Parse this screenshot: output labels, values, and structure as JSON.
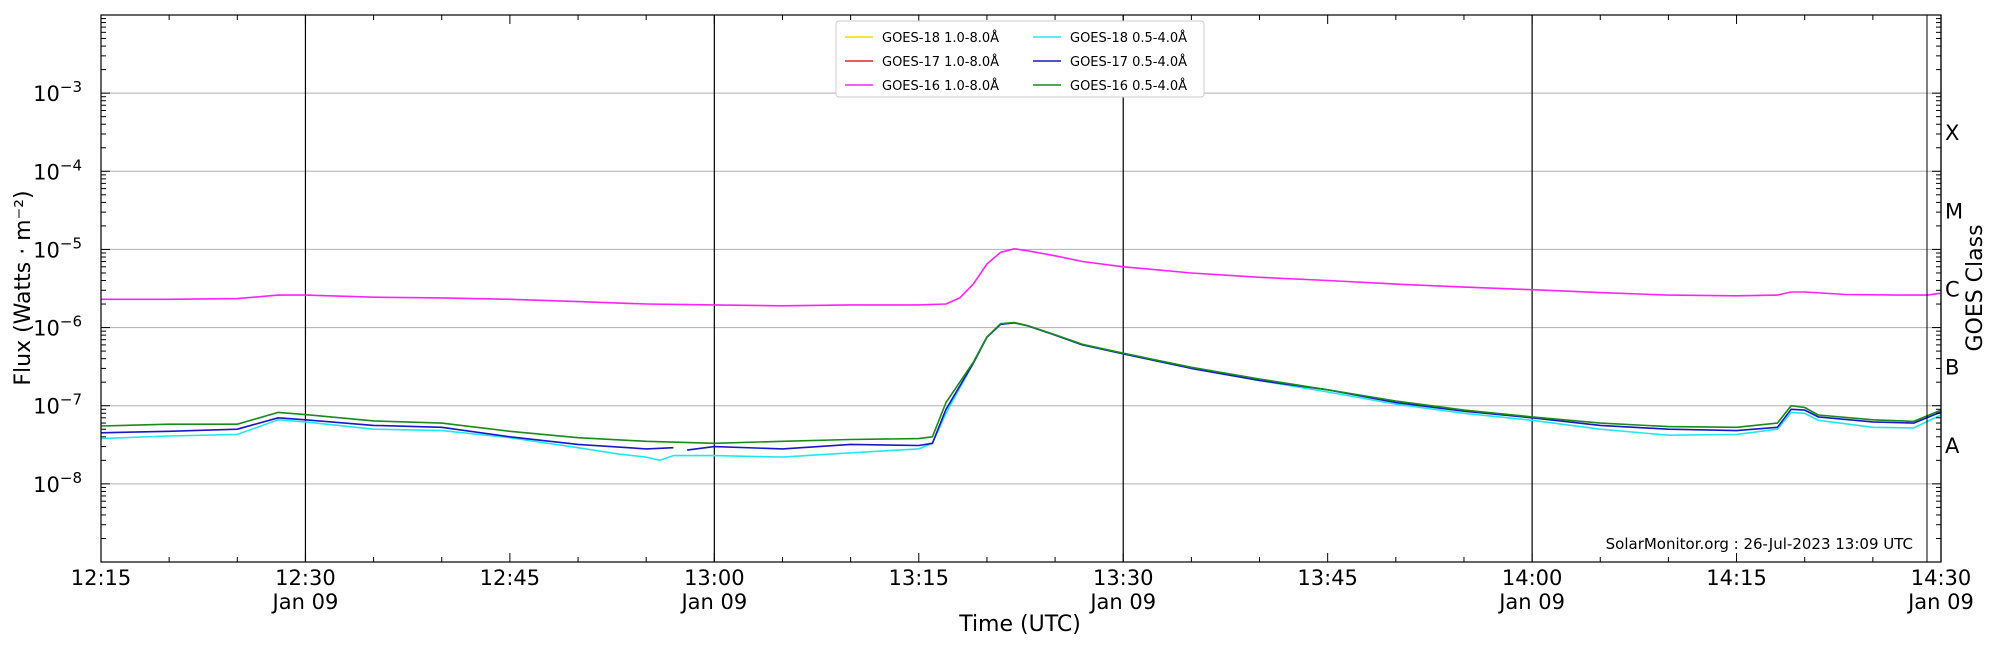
{
  "chart_data": {
    "type": "line",
    "xlabel": "Time (UTC)",
    "ylabel": "Flux (Watts · m⁻²)",
    "y2label": "GOES Class",
    "yscale": "log",
    "xlim": [
      "2023-01-09 12:15",
      "2023-01-09 14:30"
    ],
    "ylim": [
      1e-09,
      0.01
    ],
    "grid": "horizontal at each decade; vertical black lines every 30 min",
    "legend_position": "top-center",
    "x_ticks": [
      {
        "time": "12:15",
        "label": "12:15",
        "sublabel": ""
      },
      {
        "time": "12:30",
        "label": "12:30",
        "sublabel": "Jan 09"
      },
      {
        "time": "12:45",
        "label": "12:45",
        "sublabel": ""
      },
      {
        "time": "13:00",
        "label": "13:00",
        "sublabel": "Jan 09"
      },
      {
        "time": "13:15",
        "label": "13:15",
        "sublabel": ""
      },
      {
        "time": "13:30",
        "label": "13:30",
        "sublabel": "Jan 09"
      },
      {
        "time": "13:45",
        "label": "13:45",
        "sublabel": ""
      },
      {
        "time": "14:00",
        "label": "14:00",
        "sublabel": "Jan 09"
      },
      {
        "time": "14:15",
        "label": "14:15",
        "sublabel": ""
      },
      {
        "time": "14:30",
        "label": "14:30",
        "sublabel": "Jan 09"
      }
    ],
    "y_ticks": [
      {
        "value": 1e-08,
        "base": "10",
        "exp": "−8"
      },
      {
        "value": 1e-07,
        "base": "10",
        "exp": "−7"
      },
      {
        "value": 1e-06,
        "base": "10",
        "exp": "−6"
      },
      {
        "value": 1e-05,
        "base": "10",
        "exp": "−5"
      },
      {
        "value": 0.0001,
        "base": "10",
        "exp": "−4"
      },
      {
        "value": 0.001,
        "base": "10",
        "exp": "−3"
      }
    ],
    "goes_classes": [
      {
        "label": "A",
        "value": 3.16e-08
      },
      {
        "label": "B",
        "value": 3.16e-07
      },
      {
        "label": "C",
        "value": 3.16e-06
      },
      {
        "label": "M",
        "value": 3.16e-05
      },
      {
        "label": "X",
        "value": 0.000316
      }
    ],
    "series": [
      {
        "name": "GOES-18 1.0-8.0Å",
        "color": "#f5d800",
        "points": []
      },
      {
        "name": "GOES-17 1.0-8.0Å",
        "color": "#e8202a",
        "points": []
      },
      {
        "name": "GOES-16 1.0-8.0Å",
        "color": "#ff22ff",
        "points": [
          [
            "12:15",
            2.3e-06
          ],
          [
            "12:20",
            2.3e-06
          ],
          [
            "12:25",
            2.35e-06
          ],
          [
            "12:28",
            2.6e-06
          ],
          [
            "12:30",
            2.6e-06
          ],
          [
            "12:35",
            2.45e-06
          ],
          [
            "12:40",
            2.4e-06
          ],
          [
            "12:45",
            2.3e-06
          ],
          [
            "12:50",
            2.15e-06
          ],
          [
            "12:55",
            2e-06
          ],
          [
            "13:00",
            1.95e-06
          ],
          [
            "13:05",
            1.9e-06
          ],
          [
            "13:10",
            1.95e-06
          ],
          [
            "13:15",
            1.95e-06
          ],
          [
            "13:17",
            2e-06
          ],
          [
            "13:18",
            2.4e-06
          ],
          [
            "13:19",
            3.6e-06
          ],
          [
            "13:20",
            6.5e-06
          ],
          [
            "13:21",
            9.2e-06
          ],
          [
            "13:22",
            1.02e-05
          ],
          [
            "13:23",
            9.6e-06
          ],
          [
            "13:25",
            8.3e-06
          ],
          [
            "13:27",
            7e-06
          ],
          [
            "13:30",
            6e-06
          ],
          [
            "13:35",
            5e-06
          ],
          [
            "13:40",
            4.4e-06
          ],
          [
            "13:45",
            4e-06
          ],
          [
            "13:50",
            3.6e-06
          ],
          [
            "13:55",
            3.3e-06
          ],
          [
            "14:00",
            3.05e-06
          ],
          [
            "14:05",
            2.8e-06
          ],
          [
            "14:10",
            2.6e-06
          ],
          [
            "14:15",
            2.55e-06
          ],
          [
            "14:18",
            2.6e-06
          ],
          [
            "14:19",
            2.85e-06
          ],
          [
            "14:20",
            2.85e-06
          ],
          [
            "14:23",
            2.65e-06
          ],
          [
            "14:27",
            2.6e-06
          ],
          [
            "14:29",
            2.6e-06
          ],
          [
            "14:30",
            2.75e-06
          ]
        ]
      },
      {
        "name": "GOES-18 0.5-4.0Å",
        "color": "#22e8ee",
        "points": [
          [
            "12:15",
            3.8e-08
          ],
          [
            "12:20",
            4.1e-08
          ],
          [
            "12:25",
            4.3e-08
          ],
          [
            "12:28",
            6.6e-08
          ],
          [
            "12:30",
            6.2e-08
          ],
          [
            "12:35",
            5e-08
          ],
          [
            "12:40",
            4.8e-08
          ],
          [
            "12:45",
            3.9e-08
          ],
          [
            "12:50",
            2.9e-08
          ],
          [
            "12:53",
            2.4e-08
          ],
          [
            "12:55",
            2.2e-08
          ],
          [
            "12:56",
            2e-08
          ],
          [
            "12:57",
            2.3e-08
          ],
          [
            "13:00",
            2.3e-08
          ],
          [
            "13:05",
            2.2e-08
          ],
          [
            "13:10",
            2.5e-08
          ],
          [
            "13:15",
            2.8e-08
          ],
          [
            "13:16",
            3.3e-08
          ],
          [
            "13:17",
            8e-08
          ],
          [
            "13:19",
            3.5e-07
          ],
          [
            "13:20",
            7.5e-07
          ],
          [
            "13:21",
            1.1e-06
          ],
          [
            "13:22",
            1.15e-06
          ],
          [
            "13:23",
            1.05e-06
          ],
          [
            "13:25",
            8e-07
          ],
          [
            "13:27",
            6e-07
          ],
          [
            "13:30",
            4.6e-07
          ],
          [
            "13:35",
            3e-07
          ],
          [
            "13:40",
            2.1e-07
          ],
          [
            "13:45",
            1.5e-07
          ],
          [
            "13:50",
            1.05e-07
          ],
          [
            "13:55",
            8e-08
          ],
          [
            "14:00",
            6.5e-08
          ],
          [
            "14:05",
            5e-08
          ],
          [
            "14:10",
            4.2e-08
          ],
          [
            "14:15",
            4.3e-08
          ],
          [
            "14:18",
            5e-08
          ],
          [
            "14:19",
            8.2e-08
          ],
          [
            "14:20",
            8e-08
          ],
          [
            "14:21",
            6.5e-08
          ],
          [
            "14:25",
            5.3e-08
          ],
          [
            "14:28",
            5.2e-08
          ],
          [
            "14:30",
            7.6e-08
          ]
        ]
      },
      {
        "name": "GOES-17 0.5-4.0Å",
        "color": "#1818c8",
        "points": [
          [
            "12:15",
            4.5e-08
          ],
          [
            "12:20",
            4.7e-08
          ],
          [
            "12:25",
            5e-08
          ],
          [
            "12:28",
            7e-08
          ],
          [
            "12:30",
            6.6e-08
          ],
          [
            "12:35",
            5.6e-08
          ],
          [
            "12:40",
            5.3e-08
          ],
          [
            "12:45",
            4e-08
          ],
          [
            "12:50",
            3.2e-08
          ],
          [
            "12:55",
            2.8e-08
          ],
          [
            "12:57",
            2.9e-08
          ],
          null,
          [
            "12:58",
            2.7e-08
          ],
          [
            "13:00",
            3e-08
          ],
          [
            "13:05",
            2.8e-08
          ],
          [
            "13:10",
            3.2e-08
          ],
          [
            "13:15",
            3.1e-08
          ],
          [
            "13:16",
            3.3e-08
          ],
          [
            "13:17",
            9e-08
          ],
          [
            "13:19",
            3.5e-07
          ],
          [
            "13:20",
            7.5e-07
          ],
          [
            "13:21",
            1.1e-06
          ],
          [
            "13:22",
            1.15e-06
          ],
          [
            "13:23",
            1.05e-06
          ],
          [
            "13:25",
            8e-07
          ],
          [
            "13:27",
            6e-07
          ],
          [
            "13:30",
            4.6e-07
          ],
          [
            "13:35",
            3e-07
          ],
          [
            "13:40",
            2.1e-07
          ],
          [
            "13:45",
            1.6e-07
          ],
          [
            "13:50",
            1.1e-07
          ],
          [
            "13:55",
            8.5e-08
          ],
          [
            "14:00",
            7e-08
          ],
          [
            "14:05",
            5.6e-08
          ],
          [
            "14:10",
            5e-08
          ],
          [
            "14:15",
            4.8e-08
          ],
          [
            "14:18",
            5.3e-08
          ],
          [
            "14:19",
            9e-08
          ],
          [
            "14:20",
            8.8e-08
          ],
          [
            "14:21",
            7.2e-08
          ],
          [
            "14:25",
            6.2e-08
          ],
          [
            "14:28",
            6e-08
          ],
          [
            "14:30",
            8.3e-08
          ]
        ]
      },
      {
        "name": "GOES-16 0.5-4.0Å",
        "color": "#1a8a1a",
        "points": [
          [
            "12:15",
            5.5e-08
          ],
          [
            "12:20",
            5.8e-08
          ],
          [
            "12:25",
            5.8e-08
          ],
          [
            "12:28",
            8.2e-08
          ],
          [
            "12:30",
            7.7e-08
          ],
          [
            "12:35",
            6.4e-08
          ],
          [
            "12:40",
            6e-08
          ],
          [
            "12:45",
            4.7e-08
          ],
          [
            "12:50",
            3.9e-08
          ],
          [
            "12:55",
            3.5e-08
          ],
          [
            "13:00",
            3.3e-08
          ],
          [
            "13:05",
            3.5e-08
          ],
          [
            "13:10",
            3.7e-08
          ],
          [
            "13:15",
            3.8e-08
          ],
          [
            "13:16",
            4e-08
          ],
          [
            "13:17",
            1.1e-07
          ],
          [
            "13:19",
            3.6e-07
          ],
          [
            "13:20",
            7.6e-07
          ],
          [
            "13:21",
            1.12e-06
          ],
          [
            "13:22",
            1.16e-06
          ],
          [
            "13:23",
            1.06e-06
          ],
          [
            "13:25",
            8.1e-07
          ],
          [
            "13:27",
            6.1e-07
          ],
          [
            "13:30",
            4.7e-07
          ],
          [
            "13:35",
            3.1e-07
          ],
          [
            "13:40",
            2.2e-07
          ],
          [
            "13:45",
            1.6e-07
          ],
          [
            "13:50",
            1.15e-07
          ],
          [
            "13:55",
            8.8e-08
          ],
          [
            "14:00",
            7.2e-08
          ],
          [
            "14:05",
            6e-08
          ],
          [
            "14:10",
            5.4e-08
          ],
          [
            "14:15",
            5.3e-08
          ],
          [
            "14:18",
            6e-08
          ],
          [
            "14:19",
            1e-07
          ],
          [
            "14:20",
            9.5e-08
          ],
          [
            "14:21",
            7.6e-08
          ],
          [
            "14:25",
            6.6e-08
          ],
          [
            "14:28",
            6.3e-08
          ],
          [
            "14:30",
            8.8e-08
          ]
        ]
      }
    ],
    "annotation": "SolarMonitor.org : 26-Jul-2023 13:09 UTC"
  }
}
